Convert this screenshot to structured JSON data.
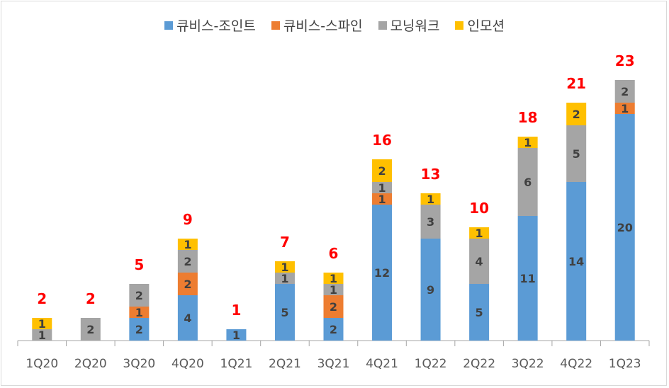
{
  "chart_data": {
    "type": "bar",
    "stacked": true,
    "title": "",
    "xlabel": "",
    "ylabel": "",
    "ylim": [
      0,
      25
    ],
    "grid": false,
    "legend_position": "top",
    "categories": [
      "1Q20",
      "2Q20",
      "3Q20",
      "4Q20",
      "1Q21",
      "2Q21",
      "3Q21",
      "4Q21",
      "1Q22",
      "2Q22",
      "3Q22",
      "4Q22",
      "1Q23"
    ],
    "series": [
      {
        "name": "큐비스-조인트",
        "color": "#5B9BD5",
        "values": [
          0,
          0,
          2,
          4,
          1,
          5,
          2,
          12,
          9,
          5,
          11,
          14,
          20
        ]
      },
      {
        "name": "큐비스-스파인",
        "color": "#ED7D31",
        "values": [
          0,
          0,
          1,
          2,
          0,
          0,
          2,
          1,
          0,
          0,
          0,
          0,
          1
        ]
      },
      {
        "name": "모닝워크",
        "color": "#A5A5A5",
        "values": [
          1,
          2,
          2,
          2,
          0,
          1,
          1,
          1,
          3,
          4,
          6,
          5,
          2
        ]
      },
      {
        "name": "인모션",
        "color": "#FFC000",
        "values": [
          1,
          0,
          0,
          1,
          0,
          1,
          1,
          2,
          1,
          1,
          1,
          2,
          0
        ]
      }
    ],
    "totals": [
      2,
      2,
      5,
      9,
      1,
      7,
      6,
      16,
      13,
      10,
      18,
      21,
      23
    ],
    "total_label_color": "#FF0000"
  }
}
